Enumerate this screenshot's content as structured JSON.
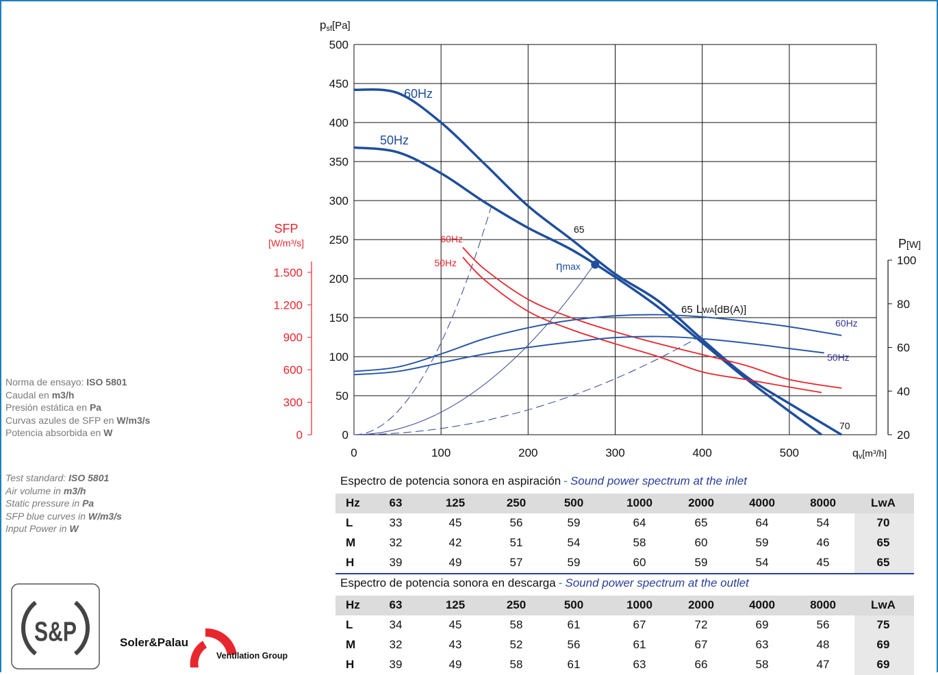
{
  "notes_es": [
    {
      "text": "Norma de ensayo:",
      "bold": "ISO 5801"
    },
    {
      "text": "Caudal en",
      "bold": "m3/h"
    },
    {
      "text": "Presión estática en",
      "bold": "Pa"
    },
    {
      "text": "Curvas azules de SFP en",
      "bold": "W/m3/s"
    },
    {
      "text": "Potencia absorbida en",
      "bold": "W"
    }
  ],
  "notes_en": [
    {
      "text": "Test standard:",
      "bold": "ISO 5801"
    },
    {
      "text": "Air volume in",
      "bold": "m3/h"
    },
    {
      "text": "Static pressure in",
      "bold": "Pa"
    },
    {
      "text": "SFP blue curves in",
      "bold": "W/m3/s"
    },
    {
      "text": "Input Power in",
      "bold": "W"
    }
  ],
  "logo": {
    "mark": "S&P",
    "brand": "Soler&Palau",
    "group": "Ventilation Group"
  },
  "chart_data": {
    "type": "line",
    "y_label": {
      "main": "p",
      "sub": "sf",
      "unit": "[Pa]"
    },
    "x_label": {
      "main": "q",
      "sub": "v",
      "unit": "[m³/h]"
    },
    "sfp_label": {
      "main": "SFP",
      "unit": "[W/m³/s]"
    },
    "p_label": {
      "main": "P",
      "unit": "[W]"
    },
    "xlim": [
      0,
      600
    ],
    "xticks": [
      0,
      100,
      200,
      300,
      400,
      500
    ],
    "ylim": [
      0,
      500
    ],
    "yticks": [
      0,
      50,
      100,
      150,
      200,
      250,
      300,
      350,
      400,
      450,
      500
    ],
    "sfp_lim": [
      0,
      1600
    ],
    "sfp_ticks": [
      0,
      300,
      600,
      900,
      {
        "value": 1200,
        "label": "1.200"
      },
      {
        "value": 1500,
        "label": "1.500"
      }
    ],
    "p_lim": [
      20,
      100
    ],
    "p_ticks": [
      20,
      40,
      60,
      80,
      100
    ],
    "grid": true,
    "series": [
      {
        "name": "60Hz",
        "kind": "pressure",
        "axis": "y",
        "color": "#1f4e9c",
        "x": [
          0,
          50,
          100,
          150,
          200,
          250,
          300,
          350,
          400,
          450,
          500,
          560
        ],
        "values": [
          442,
          438,
          400,
          347,
          293,
          250,
          206,
          171,
          122,
          75,
          40,
          0
        ]
      },
      {
        "name": "50Hz",
        "kind": "pressure",
        "axis": "y",
        "color": "#1f4e9c",
        "x": [
          0,
          50,
          100,
          150,
          200,
          250,
          300,
          350,
          400,
          450,
          500,
          537
        ],
        "values": [
          368,
          362,
          335,
          298,
          265,
          237,
          202,
          163,
          118,
          72,
          30,
          0
        ]
      },
      {
        "name": "60Hz",
        "kind": "sfp",
        "axis": "sfp",
        "color": "#e8262d",
        "x": [
          125,
          150,
          200,
          250,
          300,
          350,
          400,
          450,
          500,
          560
        ],
        "values": [
          1730,
          1530,
          1250,
          1080,
          950,
          840,
          740,
          640,
          510,
          430
        ]
      },
      {
        "name": "50Hz",
        "kind": "sfp",
        "axis": "sfp",
        "color": "#e8262d",
        "x": [
          125,
          150,
          200,
          250,
          300,
          350,
          400,
          450,
          500,
          537
        ],
        "values": [
          1640,
          1430,
          1140,
          970,
          840,
          720,
          580,
          510,
          440,
          390
        ]
      },
      {
        "name": "60Hz",
        "kind": "power",
        "axis": "p",
        "color": "#2a58a8",
        "x": [
          0,
          50,
          100,
          150,
          200,
          250,
          300,
          350,
          400,
          450,
          500,
          560
        ],
        "values": [
          49,
          51,
          57,
          64,
          69,
          72.5,
          74.5,
          75,
          74,
          72,
          69.5,
          65.5
        ]
      },
      {
        "name": "50Hz",
        "kind": "power",
        "axis": "p",
        "color": "#2a58a8",
        "x": [
          0,
          50,
          100,
          150,
          200,
          250,
          300,
          350,
          400,
          450,
          500,
          540
        ],
        "values": [
          47.5,
          49,
          53,
          57,
          60,
          62.5,
          64.5,
          65,
          64,
          62,
          59.5,
          57.5
        ]
      }
    ],
    "eta_max": {
      "symbol": "η",
      "sub": "max",
      "x": 277,
      "y": 218
    },
    "annotations": [
      "65",
      "70"
    ],
    "lwa_label": {
      "value": "65",
      "main": "L",
      "sub": "WA",
      "unit": "[dB(A)]"
    }
  },
  "tables": [
    {
      "title_es": "Espectro de potencia sonora en aspiración",
      "separator": "-",
      "title_en": "Sound power spectrum at the inlet",
      "header": [
        "Hz",
        "63",
        "125",
        "250",
        "500",
        "1000",
        "2000",
        "4000",
        "8000",
        "LwA"
      ],
      "rows": [
        [
          "L",
          33,
          45,
          56,
          59,
          64,
          65,
          64,
          54,
          70
        ],
        [
          "M",
          32,
          42,
          51,
          54,
          58,
          60,
          59,
          46,
          65
        ],
        [
          "H",
          39,
          49,
          57,
          59,
          60,
          59,
          54,
          45,
          65
        ]
      ]
    },
    {
      "title_es": "Espectro de potencia sonora en descarga",
      "separator": "-",
      "title_en": "Sound power spectrum at the outlet",
      "header": [
        "Hz",
        "63",
        "125",
        "250",
        "500",
        "1000",
        "2000",
        "4000",
        "8000",
        "LwA"
      ],
      "rows": [
        [
          "L",
          34,
          45,
          58,
          61,
          67,
          72,
          69,
          56,
          75
        ],
        [
          "M",
          32,
          43,
          52,
          56,
          61,
          67,
          63,
          48,
          69
        ],
        [
          "H",
          39,
          49,
          58,
          61,
          63,
          66,
          58,
          47,
          69
        ]
      ]
    }
  ]
}
